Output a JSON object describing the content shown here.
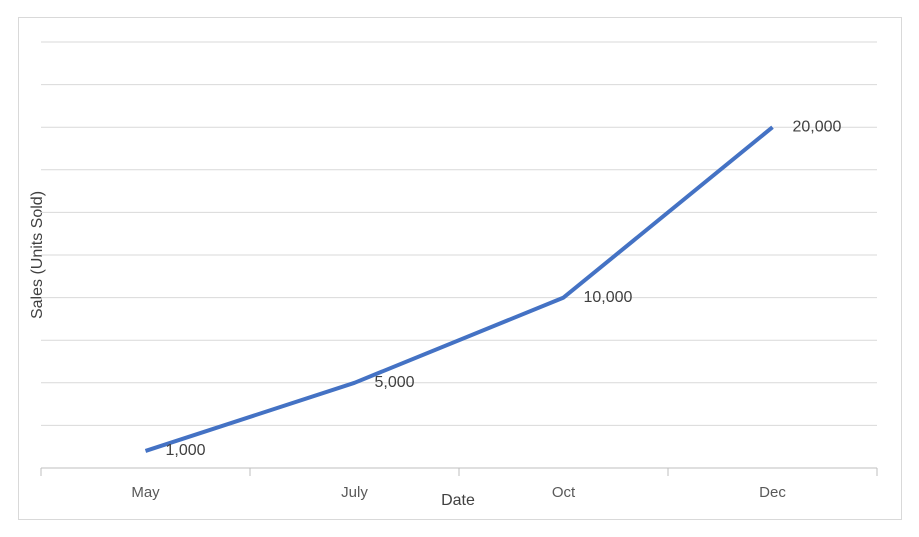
{
  "chart_data": {
    "type": "line",
    "x_label": "Date",
    "y_label": "Sales (Units Sold)",
    "categories": [
      "May",
      "July",
      "Oct",
      "Dec"
    ],
    "series": [
      {
        "name": "Sales",
        "color": "#4472c4",
        "values": [
          1000,
          5000,
          10000,
          20000
        ],
        "value_labels": [
          "1,000",
          "5,000",
          "10,000",
          "20,000"
        ]
      }
    ],
    "ylim": [
      0,
      25000
    ],
    "grid": true
  }
}
